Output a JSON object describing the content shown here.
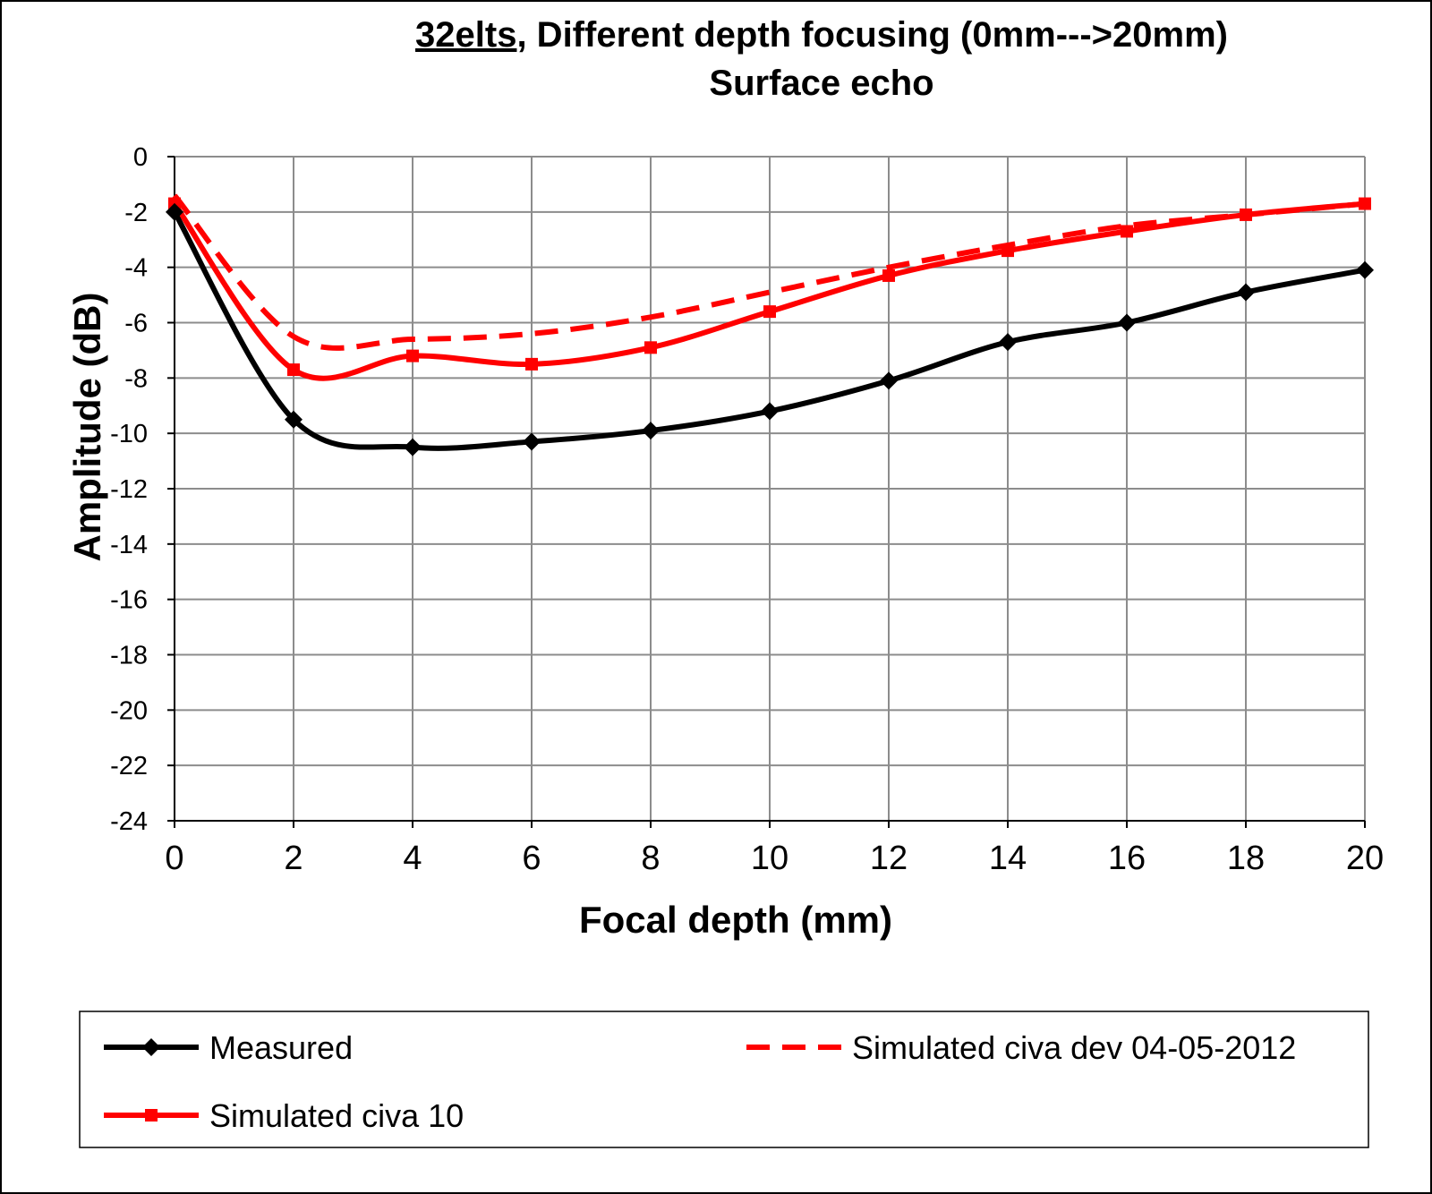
{
  "chart_data": {
    "type": "line",
    "title": {
      "underlined": "32elts",
      "rest": ", Different depth focusing (0mm--->20mm)",
      "line2": "Surface echo"
    },
    "xlabel": "Focal depth (mm)",
    "ylabel": "Amplitude (dB)",
    "xlim": [
      0,
      20
    ],
    "ylim": [
      -24,
      0
    ],
    "xticks": [
      "0",
      "2",
      "4",
      "6",
      "8",
      "10",
      "12",
      "14",
      "16",
      "18",
      "20"
    ],
    "yticks": [
      "0",
      "-2",
      "-4",
      "-6",
      "-8",
      "-10",
      "-12",
      "-14",
      "-16",
      "-18",
      "-20",
      "-22",
      "-24"
    ],
    "x": [
      0,
      2,
      4,
      6,
      8,
      10,
      12,
      14,
      16,
      18,
      20
    ],
    "grid": true,
    "legend_position": "bottom",
    "series": [
      {
        "name": "Measured",
        "color": "#000000",
        "dash": "solid",
        "marker": "diamond",
        "values": [
          -2.0,
          -9.5,
          -10.5,
          -10.3,
          -9.9,
          -9.2,
          -8.1,
          -6.7,
          -6.0,
          -4.9,
          -4.1
        ]
      },
      {
        "name": "Simulated civa 10",
        "color": "#ff0000",
        "dash": "solid",
        "marker": "square",
        "values": [
          -1.7,
          -7.7,
          -7.2,
          -7.5,
          -6.9,
          -5.6,
          -4.3,
          -3.4,
          -2.7,
          -2.1,
          -1.7
        ]
      },
      {
        "name": "Simulated civa dev 04-05-2012",
        "color": "#ff0000",
        "dash": "dashed",
        "marker": "none",
        "values": [
          -1.4,
          -6.5,
          -6.6,
          -6.4,
          -5.8,
          -4.9,
          -4.0,
          -3.2,
          -2.5,
          -2.1,
          -1.7
        ]
      }
    ]
  }
}
